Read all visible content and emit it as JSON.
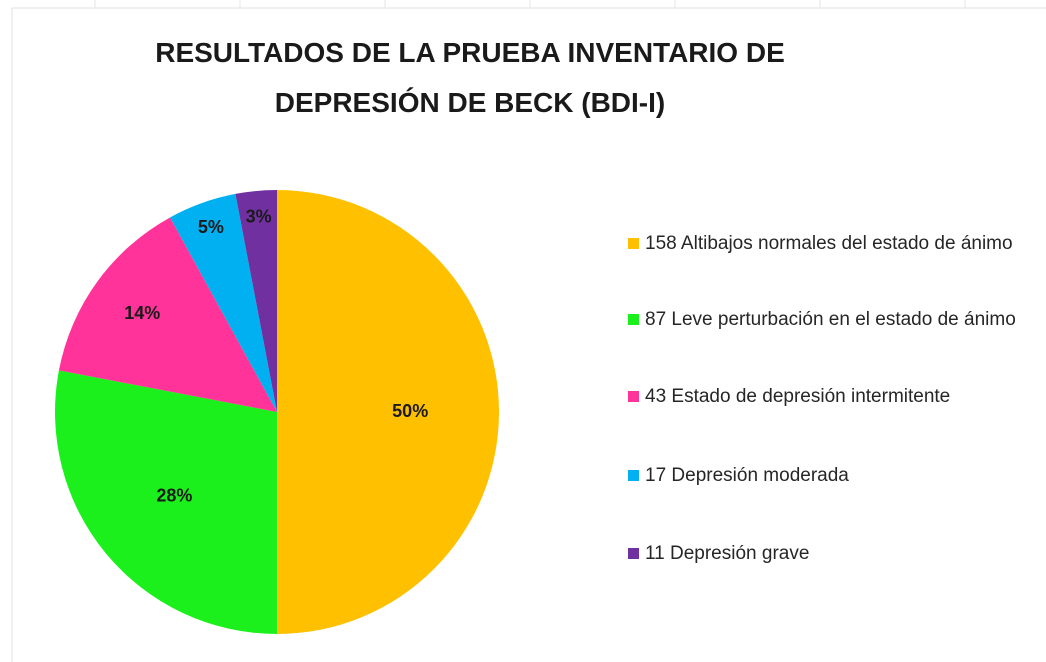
{
  "chart_data": {
    "type": "pie",
    "title": "RESULTADOS DE LA PRUEBA INVENTARIO DE DEPRESIÓN DE BECK (BDI-I)",
    "categories": [
      "158 Altibajos normales del estado de ánimo",
      "87 Leve perturbación en el estado de ánimo",
      "43 Estado de depresión intermitente",
      "17 Depresión moderada",
      "11 Depresión grave"
    ],
    "values": [
      50,
      28,
      14,
      5,
      3
    ],
    "value_labels": [
      "50%",
      "28%",
      "14%",
      "5%",
      "3%"
    ],
    "colors": [
      "#ffc000",
      "#1cf01c",
      "#ff3399",
      "#00b0f0",
      "#7030a0"
    ],
    "legend": "right"
  }
}
